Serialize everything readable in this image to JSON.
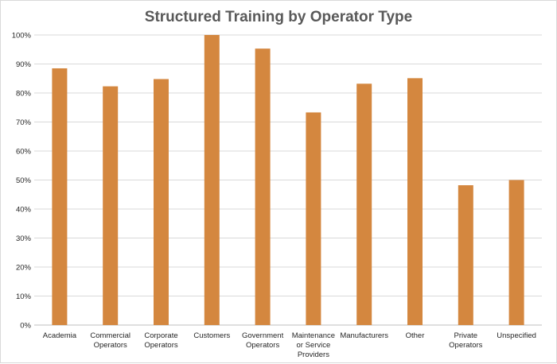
{
  "chart_data": {
    "type": "bar",
    "title": "Structured Training by Operator Type",
    "xlabel": "",
    "ylabel": "",
    "ylim": [
      0,
      100
    ],
    "ytick_labels": [
      "0%",
      "10%",
      "20%",
      "30%",
      "40%",
      "50%",
      "60%",
      "70%",
      "80%",
      "90%",
      "100%"
    ],
    "categories": [
      [
        "Academia"
      ],
      [
        "Commercial",
        "Operators"
      ],
      [
        "Corporate",
        "Operators"
      ],
      [
        "Customers"
      ],
      [
        "Government",
        "Operators"
      ],
      [
        "Maintenance",
        "or Service",
        "Providers"
      ],
      [
        "Manufacturers"
      ],
      [
        "Other"
      ],
      [
        "Private",
        "Operators"
      ],
      [
        "Unspecified"
      ]
    ],
    "values": [
      88.5,
      82.3,
      84.8,
      100,
      95.3,
      73.3,
      83.2,
      85.1,
      48.2,
      50.0
    ],
    "bar_color": "#d4873f",
    "grid": true,
    "legend": "none"
  }
}
